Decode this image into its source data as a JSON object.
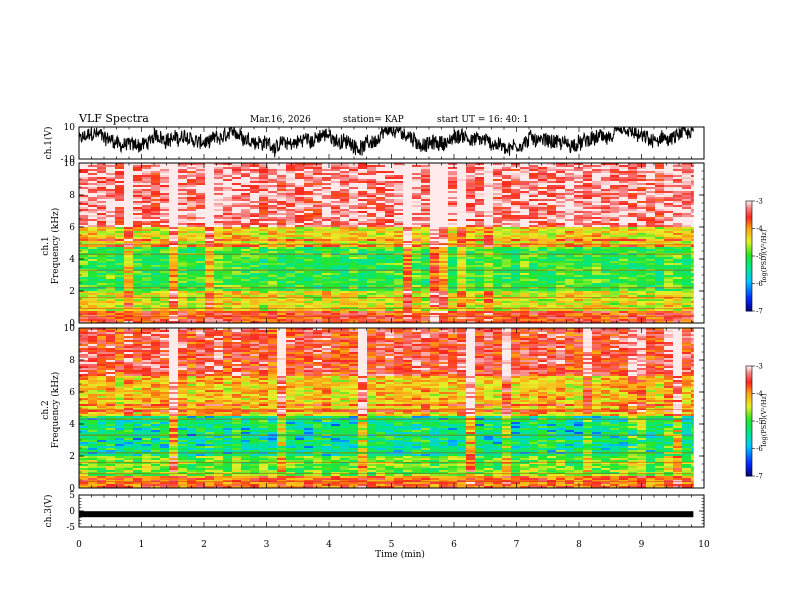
{
  "header": {
    "title": "VLF Spectra",
    "date": "Mar.16, 2026",
    "station": "station= KAP",
    "start": "start UT = 16: 40: 1"
  },
  "chart_data": [
    {
      "type": "line",
      "panel": "waveform-1",
      "ylabel": "ch.1(V)",
      "ylim": [
        -10,
        10
      ],
      "yticks": [
        10,
        -10
      ],
      "x_range_min": [
        0,
        9.83
      ],
      "description_values": "noisy broadband waveform oscillating roughly between -9 and 9 V"
    },
    {
      "type": "heatmap",
      "panel": "spectrogram-1",
      "ylabel": "ch.1\nFrequency (kHz)",
      "ylim": [
        0,
        10
      ],
      "yticks": [
        0,
        2,
        4,
        6,
        8,
        10
      ],
      "colorbar": {
        "label": "log(PSD)(V²/Hz)",
        "range": [
          -7,
          -3
        ],
        "ticks": [
          -3,
          -4,
          -5,
          -6,
          -7
        ]
      },
      "bands_khz": [
        {
          "range": [
            0,
            0.7
          ],
          "level": -3.6
        },
        {
          "range": [
            0.7,
            2.0
          ],
          "level": -4.4
        },
        {
          "range": [
            2.0,
            4.8
          ],
          "level": -5.0
        },
        {
          "range": [
            4.8,
            6.0
          ],
          "level": -4.3
        },
        {
          "range": [
            6.0,
            10.0
          ],
          "level": -3.2
        }
      ]
    },
    {
      "type": "heatmap",
      "panel": "spectrogram-2",
      "ylabel": "ch.2\nFrequency (kHz)",
      "ylim": [
        0,
        10
      ],
      "yticks": [
        0,
        2,
        4,
        6,
        8,
        10
      ],
      "colorbar": {
        "label": "log(PSD)(V²/Hz)",
        "range": [
          -7,
          -3
        ],
        "ticks": [
          -3,
          -4,
          -5,
          -6,
          -7
        ]
      },
      "bands_khz": [
        {
          "range": [
            0,
            0.7
          ],
          "level": -3.8
        },
        {
          "range": [
            0.7,
            2.0
          ],
          "level": -4.8
        },
        {
          "range": [
            2.0,
            4.5
          ],
          "level": -5.2
        },
        {
          "range": [
            4.5,
            7.0
          ],
          "level": -4.2
        },
        {
          "range": [
            7.0,
            10.0
          ],
          "level": -3.5
        }
      ]
    },
    {
      "type": "line",
      "panel": "waveform-3",
      "ylabel": "ch.3(V)",
      "ylim": [
        -5,
        5
      ],
      "yticks": [
        5,
        0,
        -5
      ],
      "values_constant": -1.0,
      "x_range_min": [
        0,
        9.83
      ]
    }
  ],
  "xaxis": {
    "label": "Time (min)",
    "ticks": [
      "0",
      "1",
      "2",
      "3",
      "4",
      "5",
      "6",
      "7",
      "8",
      "9",
      "10"
    ],
    "xlim": [
      0,
      10
    ]
  },
  "labels": {
    "ch1_wave": "ch.1(V)",
    "ch1_spec_a": "ch.1",
    "ch1_spec_b": "Frequency (kHz)",
    "ch2_spec_a": "ch.2",
    "ch2_spec_b": "Frequency (kHz)",
    "ch3_wave": "ch.3(V)",
    "cb_label": "log(PSD)(V²/Hz)"
  }
}
